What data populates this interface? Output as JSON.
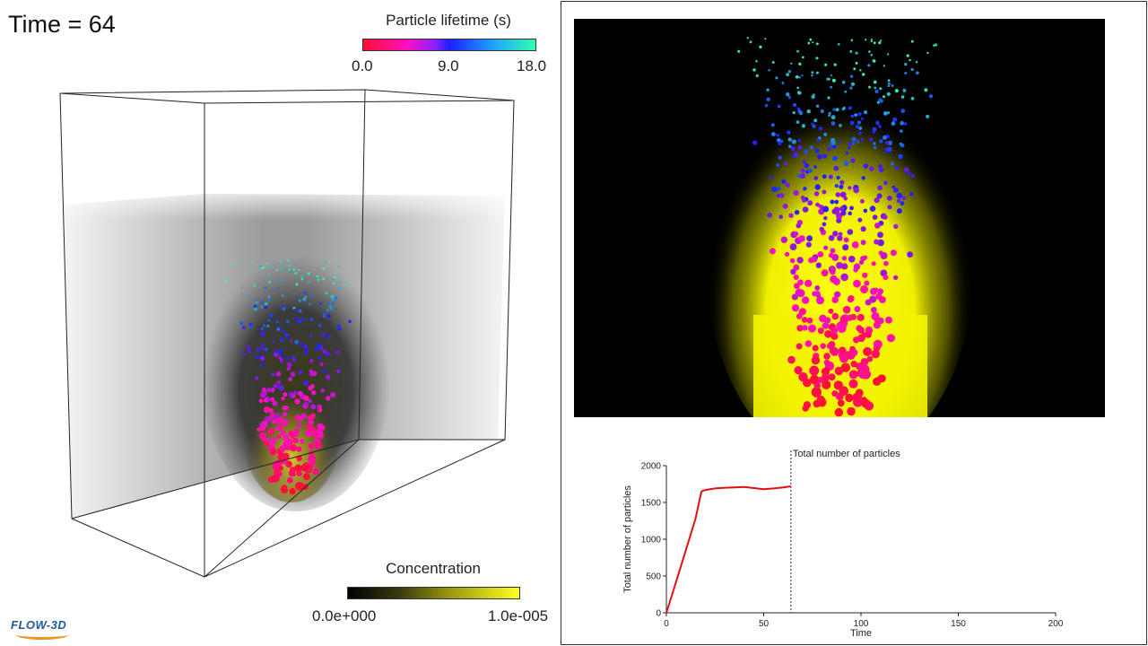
{
  "time_label": "Time = 64",
  "lifetime_legend": {
    "title": "Particle lifetime (s)",
    "ticks": [
      "0.0",
      "9.0",
      "18.0"
    ],
    "colors": [
      "#ff1030",
      "#ff10c0",
      "#1a20ff",
      "#30ffb0"
    ]
  },
  "concentration_legend": {
    "title": "Concentration",
    "min_label": "0.0e+000",
    "max_label": "1.0e-005",
    "colors": [
      "#000000",
      "#ffff20"
    ]
  },
  "logo": {
    "text": "FLOW-3D"
  },
  "chart_data": {
    "type": "line",
    "title": "Total number of particles",
    "xlabel": "Time",
    "ylabel": "Total number of particles",
    "xlim": [
      0,
      200
    ],
    "ylim": [
      0,
      2000
    ],
    "xticks": [
      "0",
      "50",
      "100",
      "150",
      "200"
    ],
    "yticks": [
      "0",
      "500",
      "1000",
      "1500",
      "2000"
    ],
    "current_time": 64,
    "series": [
      {
        "name": "Total number of particles",
        "color": "#e01010",
        "x": [
          0,
          5,
          10,
          15,
          18,
          20,
          25,
          30,
          35,
          40,
          45,
          50,
          55,
          60,
          64
        ],
        "y": [
          0,
          420,
          850,
          1280,
          1650,
          1670,
          1690,
          1700,
          1705,
          1710,
          1695,
          1680,
          1690,
          1705,
          1720
        ]
      }
    ]
  }
}
